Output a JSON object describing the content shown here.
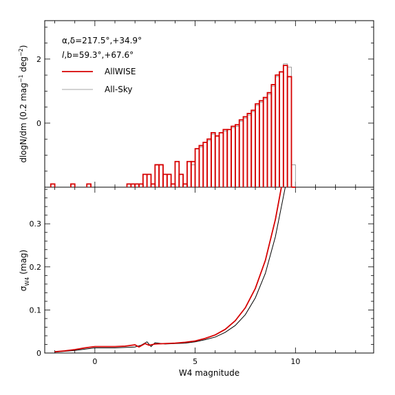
{
  "chart_data": [
    {
      "panel": "top",
      "type": "line",
      "step": true,
      "ylabel_text": "dlogN/dm (0.2 mag",
      "ylabel_units": "deg",
      "ylabel_sup1": "−1",
      "ylabel_sup2": "−2",
      "ylabel_close": ")",
      "annotation_line1": "α,δ=217.5°,+34.9°",
      "annotation_line2_var": "l",
      "annotation_line2_rest": ",b=59.3°,+67.6°",
      "xlim": [
        -2.5,
        13.9
      ],
      "ylim": [
        -2.0,
        3.2
      ],
      "x_ticks": [
        0,
        5,
        10
      ],
      "y_ticks": [
        0,
        2
      ],
      "y_tick_labels": [
        "0",
        "2"
      ],
      "legend_location": "upper-left",
      "series": [
        {
          "name": "AllWISE",
          "color": "#d60000",
          "bins": [
            [
              -2.2,
              -1.9
            ],
            [
              -1.2,
              -1.9
            ],
            [
              -0.4,
              -1.9
            ],
            [
              1.6,
              -1.9
            ],
            [
              1.8,
              -1.9
            ],
            [
              2.0,
              -1.9
            ],
            [
              2.2,
              -1.9
            ],
            [
              2.4,
              -1.6
            ],
            [
              2.6,
              -1.6
            ],
            [
              2.8,
              -1.9
            ],
            [
              3.0,
              -1.3
            ],
            [
              3.2,
              -1.3
            ],
            [
              3.4,
              -1.6
            ],
            [
              3.6,
              -1.6
            ],
            [
              3.8,
              -1.9
            ],
            [
              4.0,
              -1.2
            ],
            [
              4.2,
              -1.6
            ],
            [
              4.4,
              -1.9
            ],
            [
              4.6,
              -1.2
            ],
            [
              4.8,
              -1.2
            ],
            [
              5.0,
              -0.8
            ],
            [
              5.2,
              -0.7
            ],
            [
              5.4,
              -0.6
            ],
            [
              5.6,
              -0.5
            ],
            [
              5.8,
              -0.3
            ],
            [
              6.0,
              -0.4
            ],
            [
              6.2,
              -0.3
            ],
            [
              6.4,
              -0.2
            ],
            [
              6.6,
              -0.2
            ],
            [
              6.8,
              -0.1
            ],
            [
              7.0,
              -0.05
            ],
            [
              7.2,
              0.1
            ],
            [
              7.4,
              0.2
            ],
            [
              7.6,
              0.3
            ],
            [
              7.8,
              0.4
            ],
            [
              8.0,
              0.6
            ],
            [
              8.2,
              0.7
            ],
            [
              8.4,
              0.8
            ],
            [
              8.6,
              0.95
            ],
            [
              8.8,
              1.2
            ],
            [
              9.0,
              1.5
            ],
            [
              9.2,
              1.6
            ],
            [
              9.4,
              1.8
            ],
            [
              9.6,
              1.45
            ],
            [
              9.8,
              -2.0
            ]
          ]
        },
        {
          "name": "All-Sky",
          "color": "#888888",
          "bins": [
            [
              -2.2,
              -1.9
            ],
            [
              -1.2,
              -1.9
            ],
            [
              -0.4,
              -1.9
            ],
            [
              1.6,
              -1.9
            ],
            [
              1.8,
              -1.9
            ],
            [
              2.0,
              -1.9
            ],
            [
              2.2,
              -1.9
            ],
            [
              2.4,
              -1.6
            ],
            [
              2.6,
              -1.6
            ],
            [
              2.8,
              -1.9
            ],
            [
              3.0,
              -1.3
            ],
            [
              3.2,
              -1.3
            ],
            [
              3.4,
              -1.6
            ],
            [
              3.6,
              -1.6
            ],
            [
              3.8,
              -1.9
            ],
            [
              4.0,
              -1.2
            ],
            [
              4.2,
              -1.6
            ],
            [
              4.4,
              -1.9
            ],
            [
              4.6,
              -1.2
            ],
            [
              4.8,
              -1.3
            ],
            [
              5.0,
              -0.8
            ],
            [
              5.2,
              -0.75
            ],
            [
              5.4,
              -0.6
            ],
            [
              5.6,
              -0.55
            ],
            [
              5.8,
              -0.35
            ],
            [
              6.0,
              -0.4
            ],
            [
              6.2,
              -0.3
            ],
            [
              6.4,
              -0.25
            ],
            [
              6.6,
              -0.2
            ],
            [
              6.8,
              -0.15
            ],
            [
              7.0,
              -0.1
            ],
            [
              7.2,
              0.05
            ],
            [
              7.4,
              0.15
            ],
            [
              7.6,
              0.25
            ],
            [
              7.8,
              0.35
            ],
            [
              8.0,
              0.55
            ],
            [
              8.2,
              0.65
            ],
            [
              8.4,
              0.75
            ],
            [
              8.6,
              0.9
            ],
            [
              8.8,
              1.15
            ],
            [
              9.0,
              1.45
            ],
            [
              9.2,
              1.6
            ],
            [
              9.4,
              1.85
            ],
            [
              9.6,
              1.75
            ],
            [
              9.8,
              -1.3
            ]
          ]
        }
      ]
    },
    {
      "panel": "bottom",
      "type": "line",
      "xlabel": "W4 magnitude",
      "ylabel_sym": "σ",
      "ylabel_sub": "W4",
      "ylabel_unit": "(mag)",
      "xlim": [
        -2.5,
        13.9
      ],
      "ylim": [
        0,
        0.385
      ],
      "x_ticks": [
        0,
        5,
        10
      ],
      "x_tick_labels": [
        "0",
        "5",
        "10"
      ],
      "y_ticks": [
        0,
        0.1,
        0.2,
        0.3
      ],
      "y_tick_labels": [
        "0",
        "0.1",
        "0.2",
        "0.3"
      ],
      "series": [
        {
          "name": "AllWISE",
          "color": "#d60000",
          "x": [
            -2.0,
            -1.5,
            -1.0,
            -0.5,
            0.0,
            0.5,
            1.0,
            1.5,
            2.0,
            2.2,
            2.5,
            2.7,
            3.0,
            3.5,
            4.0,
            4.5,
            5.0,
            5.5,
            6.0,
            6.5,
            7.0,
            7.5,
            8.0,
            8.5,
            9.0,
            9.2,
            9.4
          ],
          "y": [
            0.003,
            0.005,
            0.008,
            0.012,
            0.015,
            0.015,
            0.015,
            0.016,
            0.019,
            0.014,
            0.022,
            0.018,
            0.021,
            0.022,
            0.023,
            0.025,
            0.028,
            0.034,
            0.042,
            0.055,
            0.075,
            0.105,
            0.15,
            0.215,
            0.31,
            0.36,
            0.41
          ]
        },
        {
          "name": "All-Sky",
          "color": "#000000",
          "x": [
            -2.0,
            -1.5,
            -1.0,
            -0.5,
            0.0,
            0.5,
            1.0,
            1.5,
            2.0,
            2.3,
            2.6,
            2.8,
            3.0,
            3.5,
            4.0,
            4.5,
            5.0,
            5.5,
            6.0,
            6.5,
            7.0,
            7.5,
            8.0,
            8.5,
            9.0,
            9.3,
            9.6
          ],
          "y": [
            0.002,
            0.004,
            0.006,
            0.009,
            0.012,
            0.012,
            0.012,
            0.013,
            0.014,
            0.018,
            0.026,
            0.015,
            0.024,
            0.021,
            0.022,
            0.023,
            0.026,
            0.031,
            0.037,
            0.048,
            0.064,
            0.089,
            0.128,
            0.185,
            0.27,
            0.34,
            0.41
          ]
        }
      ]
    }
  ]
}
